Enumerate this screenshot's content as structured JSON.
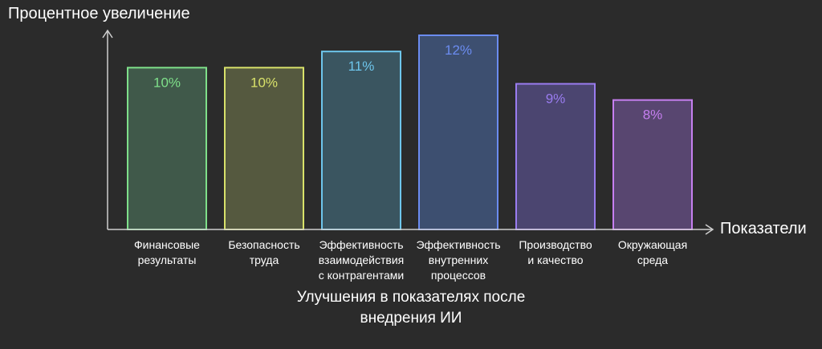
{
  "chart_data": {
    "type": "bar",
    "title": "",
    "ylabel": "Процентное увеличение",
    "xlabel": "Показатели",
    "caption_lines": [
      "Улучшения в показателях после",
      "внедрения ИИ"
    ],
    "categories": [
      [
        "Финансовые",
        "результаты"
      ],
      [
        "Безопасность",
        "труда"
      ],
      [
        "Эффективность",
        "взаимодействия",
        "с контрагентами"
      ],
      [
        "Эффективность",
        "внутренних",
        "процессов"
      ],
      [
        "Производство",
        "и качество"
      ],
      [
        "Окружающая",
        "среда"
      ]
    ],
    "values": [
      10,
      10,
      11,
      12,
      9,
      8
    ],
    "value_labels": [
      "10%",
      "10%",
      "11%",
      "12%",
      "9%",
      "8%"
    ],
    "ylim": [
      0,
      12
    ],
    "grid": false,
    "bar_colors": [
      "#7fe08a",
      "#d9e26a",
      "#6ec6ec",
      "#6b8cf0",
      "#9a7cf0",
      "#c67ff0"
    ],
    "bar_fills": [
      "#40594a",
      "#55593f",
      "#3a5560",
      "#3d4f70",
      "#4b4570",
      "#584670"
    ],
    "axis_color": "#cfcfcf"
  }
}
